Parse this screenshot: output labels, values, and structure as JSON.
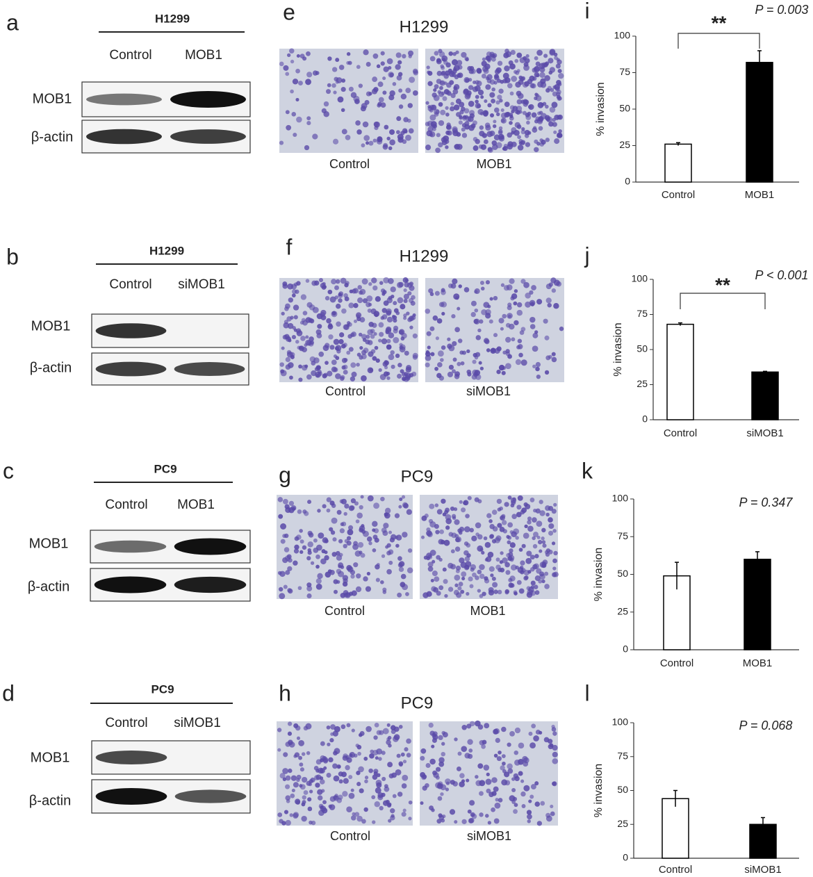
{
  "panels": {
    "blots": [
      {
        "letter": "a",
        "cell_line": "H1299",
        "lanes": [
          "Control",
          "MOB1"
        ],
        "rows": [
          "MOB1",
          "β-actin"
        ]
      },
      {
        "letter": "b",
        "cell_line": "H1299",
        "lanes": [
          "Control",
          "siMOB1"
        ],
        "rows": [
          "MOB1",
          "β-actin"
        ]
      },
      {
        "letter": "c",
        "cell_line": "PC9",
        "lanes": [
          "Control",
          "MOB1"
        ],
        "rows": [
          "MOB1",
          "β-actin"
        ]
      },
      {
        "letter": "d",
        "cell_line": "PC9",
        "lanes": [
          "Control",
          "siMOB1"
        ],
        "rows": [
          "MOB1",
          "β-actin"
        ]
      }
    ],
    "micrographs": [
      {
        "letter": "e",
        "title": "H1299",
        "captions": [
          "Control",
          "MOB1"
        ]
      },
      {
        "letter": "f",
        "title": "H1299",
        "captions": [
          "Control",
          "siMOB1"
        ]
      },
      {
        "letter": "g",
        "title": "PC9",
        "captions": [
          "Control",
          "MOB1"
        ]
      },
      {
        "letter": "h",
        "title": "PC9",
        "captions": [
          "Control",
          "siMOB1"
        ]
      }
    ]
  },
  "chart_data": [
    {
      "type": "bar",
      "label": "i",
      "y_label": "% invasion",
      "annotation": "P = 0.003",
      "significance": "**",
      "categories": [
        "Control",
        "MOB1"
      ],
      "values": [
        26,
        82
      ],
      "errors": [
        1,
        8
      ],
      "colors": [
        "#ffffff",
        "#000000"
      ],
      "ylim": [
        0,
        100
      ],
      "yticks": [
        0,
        25,
        50,
        75,
        100
      ]
    },
    {
      "type": "bar",
      "label": "j",
      "y_label": "% invasion",
      "annotation": "P < 0.001",
      "significance": "**",
      "categories": [
        "Control",
        "siMOB1"
      ],
      "values": [
        68,
        34
      ],
      "errors": [
        1,
        0.5
      ],
      "colors": [
        "#ffffff",
        "#000000"
      ],
      "ylim": [
        0,
        100
      ],
      "yticks": [
        0,
        25,
        50,
        75,
        100
      ]
    },
    {
      "type": "bar",
      "label": "k",
      "y_label": "% invasion",
      "annotation": "P = 0.347",
      "categories": [
        "Control",
        "MOB1"
      ],
      "values": [
        49,
        60
      ],
      "errors": [
        9,
        5
      ],
      "colors": [
        "#ffffff",
        "#000000"
      ],
      "ylim": [
        0,
        100
      ],
      "yticks": [
        0,
        25,
        50,
        75,
        100
      ]
    },
    {
      "type": "bar",
      "label": "l",
      "y_label": "% invasion",
      "annotation": "P = 0.068",
      "categories": [
        "Control",
        "siMOB1"
      ],
      "values": [
        44,
        25
      ],
      "errors": [
        6,
        5
      ],
      "colors": [
        "#ffffff",
        "#000000"
      ],
      "ylim": [
        0,
        100
      ],
      "yticks": [
        0,
        25,
        50,
        75,
        100
      ]
    }
  ]
}
